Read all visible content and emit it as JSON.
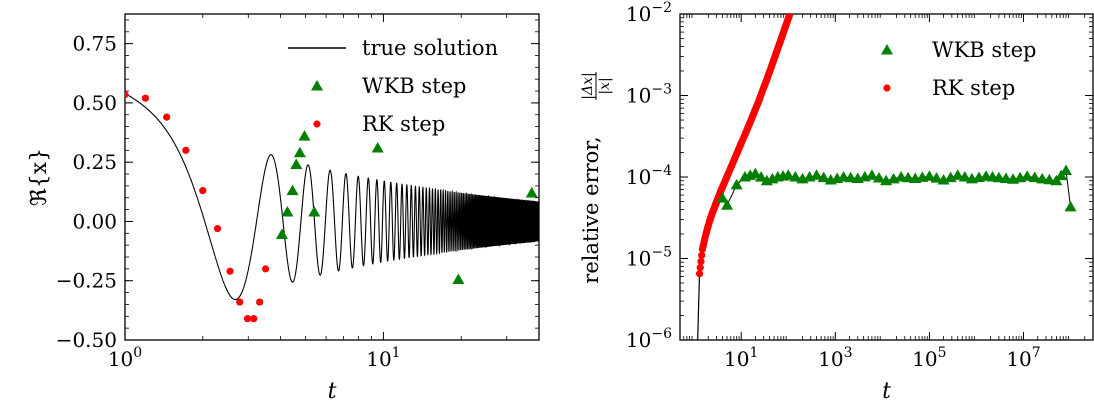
{
  "chart_data": [
    {
      "type": "line",
      "xscale": "log",
      "xlim": [
        1,
        40
      ],
      "ylim": [
        -0.5,
        0.875
      ],
      "grid": false,
      "legend_placement": "top-right",
      "ylabel": "ℜ{x}",
      "xlabel": "t",
      "xticks": [
        {
          "value": 1,
          "base": "10",
          "exp": "0"
        },
        {
          "value": 10,
          "base": "10",
          "exp": "1"
        }
      ],
      "yticks": [
        {
          "value": 0.75,
          "label": "0.75"
        },
        {
          "value": 0.5,
          "label": "0.50"
        },
        {
          "value": 0.25,
          "label": "0.25"
        },
        {
          "value": 0.0,
          "label": "0.00"
        },
        {
          "value": -0.25,
          "label": "−0.25"
        },
        {
          "value": -0.5,
          "label": "−0.50"
        }
      ],
      "series": [
        {
          "name": "true solution",
          "marker": "line",
          "color": "#000000",
          "function": "0.54*cos(t^2/2 - 0.5)/sqrt(t)"
        },
        {
          "name": "WKB step",
          "marker": "triangle",
          "color": "#008000",
          "x": [
            4.05,
            4.25,
            4.45,
            4.6,
            4.75,
            4.95,
            5.4,
            9.5,
            19.5,
            37.5
          ],
          "y": [
            -0.055,
            0.04,
            0.13,
            0.24,
            0.29,
            0.36,
            0.04,
            0.31,
            -0.245,
            0.12
          ]
        },
        {
          "name": "RK step",
          "marker": "circle",
          "color": "#ff0000",
          "x": [
            1.0,
            1.2,
            1.45,
            1.72,
            2.0,
            2.28,
            2.55,
            2.78,
            2.98,
            3.15,
            3.32,
            3.5
          ],
          "y": [
            0.535,
            0.52,
            0.44,
            0.3,
            0.13,
            -0.03,
            -0.21,
            -0.34,
            -0.41,
            -0.41,
            -0.34,
            -0.2
          ]
        }
      ]
    },
    {
      "type": "line",
      "xscale": "log",
      "yscale": "log",
      "xlim": [
        0.5,
        300000000
      ],
      "ylim": [
        1e-06,
        0.01
      ],
      "grid": false,
      "legend_placement": "top-right",
      "ylabel": "relative error, |Δx| / |x|",
      "ylabel_prefix": "relative error,",
      "ylabel_numerator": "|Δx|",
      "ylabel_denominator": "|x|",
      "xlabel": "t",
      "xticks": [
        {
          "value": 10,
          "base": "10",
          "exp": "1"
        },
        {
          "value": 1000,
          "base": "10",
          "exp": "3"
        },
        {
          "value": 100000,
          "base": "10",
          "exp": "5"
        },
        {
          "value": 10000000,
          "base": "10",
          "exp": "7"
        }
      ],
      "yticks": [
        {
          "value": 0.01,
          "base": "10",
          "exp": "−2"
        },
        {
          "value": 0.001,
          "base": "10",
          "exp": "−3"
        },
        {
          "value": 0.0001,
          "base": "10",
          "exp": "−4"
        },
        {
          "value": 1e-05,
          "base": "10",
          "exp": "−5"
        },
        {
          "value": 1e-06,
          "base": "10",
          "exp": "−6"
        }
      ],
      "series": [
        {
          "name": "WKB step",
          "marker": "triangle",
          "color": "#008000",
          "x": [
            4,
            5,
            8,
            12,
            20,
            35,
            60,
            100,
            200,
            400,
            800,
            1500,
            3000,
            6000,
            12000,
            25000,
            50000,
            100000,
            200000,
            400000,
            800000,
            1600000,
            3000000,
            6000000,
            12000000,
            25000000,
            50000000,
            80000000,
            100000000
          ],
          "y": [
            5.5e-05,
            4.5e-05,
            8e-05,
            0.0001,
            0.00011,
            9e-05,
            0.0001,
            0.000105,
            9.5e-05,
            0.000105,
            9.2e-05,
            0.0001,
            9.6e-05,
            0.000105,
            9e-05,
            0.0001,
            9.6e-05,
            0.000102,
            9.2e-05,
            0.000105,
            9.5e-05,
            0.000102,
            9.8e-05,
            9.4e-05,
            0.000102,
            9.5e-05,
            9e-05,
            0.00012,
            4.3e-05
          ]
        },
        {
          "name": "RK step",
          "marker": "circle",
          "color": "#ff0000",
          "x": [
            1.3,
            1.5,
            1.7,
            1.9,
            2.1,
            2.3,
            2.5,
            2.7,
            2.9,
            3.1,
            3.3,
            3.5,
            3.7,
            4,
            4.5,
            5,
            6,
            7,
            8,
            9,
            10,
            12,
            14,
            16,
            18,
            20,
            23,
            26,
            30,
            34,
            38,
            42,
            46,
            50,
            55,
            60,
            66,
            72,
            80,
            88,
            96,
            105,
            115,
            126
          ],
          "y": [
            6.5e-06,
            1.3e-05,
            1.8e-05,
            2.3e-05,
            2.8e-05,
            3.3e-05,
            3.8e-05,
            4.2e-05,
            4.7e-05,
            5.2e-05,
            5.7e-05,
            6.2e-05,
            6.8e-05,
            7.5e-05,
            8.8e-05,
            0.000102,
            0.00013,
            0.00016,
            0.000192,
            0.000225,
            0.00026,
            0.00033,
            0.00041,
            0.00049,
            0.00058,
            0.00068,
            0.00082,
            0.001,
            0.00125,
            0.0015,
            0.0018,
            0.0021,
            0.00245,
            0.0028,
            0.0033,
            0.0038,
            0.0044,
            0.0051,
            0.0061,
            0.0071,
            0.0082,
            0.0095,
            0.0112,
            0.013
          ]
        }
      ]
    }
  ]
}
